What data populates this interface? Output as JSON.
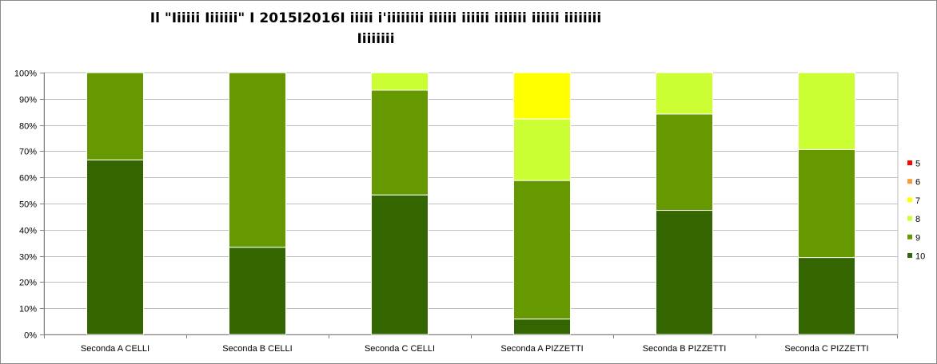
{
  "chart_data": {
    "type": "bar",
    "stacked": true,
    "normalized": true,
    "title": "Il \"Iiiiii Iiiiiii\" I 2015I2016I iiiii i'iiiiiiii iiiiii iiiiii iiiiiii iiiiii iiiiiiii Iiiiiiii",
    "title_lines": [
      "Il \"Iiiiii Iiiiiii\" I 2015I2016I iiiii i'iiiiiiii iiiiii iiiiii iiiiiii iiiiii iiiiiiii",
      "Iiiiiiii"
    ],
    "xlabel": "",
    "ylabel": "",
    "ylim": [
      0,
      100
    ],
    "y_ticks": [
      "0%",
      "10%",
      "20%",
      "30%",
      "40%",
      "50%",
      "60%",
      "70%",
      "80%",
      "90%",
      "100%"
    ],
    "grid": true,
    "legend_position": "right",
    "categories": [
      "Seconda A CELLI",
      "Seconda B CELLI",
      "Seconda C CELLI",
      "Seconda A PIZZETTI",
      "Seconda B PIZZETTI",
      "Seconda C PIZZETTI"
    ],
    "series": [
      {
        "name": "10",
        "color": "#336600",
        "values": [
          66.7,
          33.3,
          53.3,
          5.9,
          47.4,
          29.4
        ]
      },
      {
        "name": "9",
        "color": "#669900",
        "values": [
          33.3,
          66.7,
          40.0,
          52.9,
          36.8,
          41.2
        ]
      },
      {
        "name": "8",
        "color": "#ccff33",
        "values": [
          0,
          0,
          6.7,
          23.5,
          15.8,
          29.4
        ]
      },
      {
        "name": "7",
        "color": "#ffff00",
        "values": [
          0,
          0,
          0,
          17.7,
          0,
          0
        ]
      },
      {
        "name": "6",
        "color": "#ff9933",
        "values": [
          0,
          0,
          0,
          0,
          0,
          0
        ]
      },
      {
        "name": "5",
        "color": "#ff0000",
        "values": [
          0,
          0,
          0,
          0,
          0,
          0
        ]
      }
    ],
    "legend_order": [
      "5",
      "6",
      "7",
      "8",
      "9",
      "10"
    ]
  }
}
